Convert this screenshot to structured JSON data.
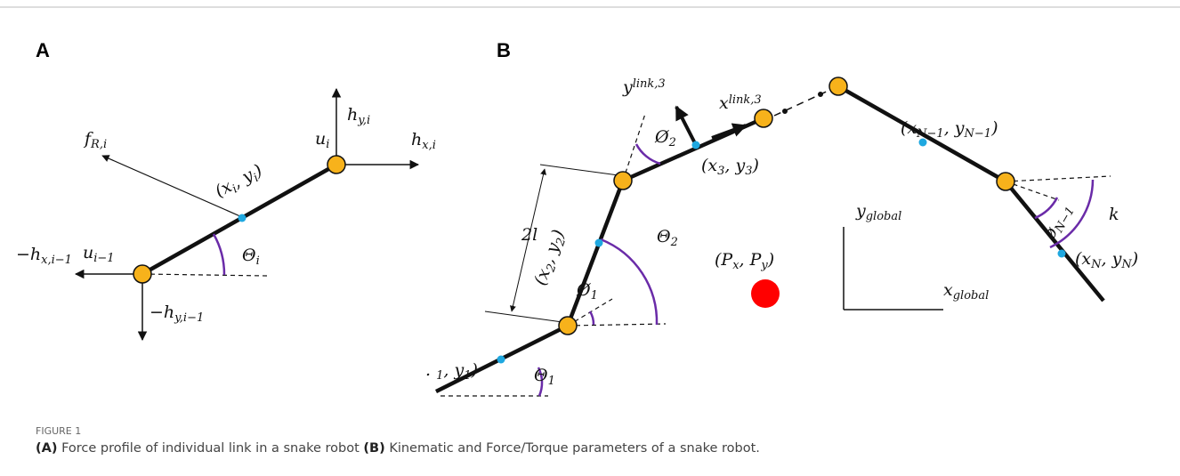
{
  "figure": {
    "number": "FIGURE 1",
    "caption": [
      {
        "bold": "(A)"
      },
      " Force profile of individual link in a snake robot ",
      {
        "bold": "(B)"
      },
      " Kinematic and Force/Torque parameters of a snake robot."
    ],
    "panel_a": {
      "label": "A",
      "labels": [
        [
          "f",
          {
            "sub": "R,i"
          }
        ],
        [
          "h",
          {
            "sub": "y,i"
          }
        ],
        [
          "h",
          {
            "sub": "x,i"
          }
        ],
        [
          "u",
          {
            "sub": "i"
          }
        ],
        [
          "(x",
          {
            "sub": "i"
          },
          ", y",
          {
            "sub": "i"
          },
          ")"
        ],
        [
          "−h",
          {
            "sub": "x,i−1"
          }
        ],
        [
          "u",
          {
            "sub": "i−1"
          }
        ],
        [
          "Θ",
          {
            "sub": "i"
          }
        ],
        [
          "−h",
          {
            "sub": "y,i−1"
          }
        ]
      ]
    },
    "panel_b": {
      "label": "B",
      "labels": [
        [
          "y",
          {
            "sup": "link,3"
          }
        ],
        [
          "x",
          {
            "sup": "link,3"
          }
        ],
        [
          "Ø",
          {
            "sub": "2"
          }
        ],
        [
          "(x",
          {
            "sub": "3"
          },
          ", y",
          {
            "sub": "3"
          },
          ")"
        ],
        [
          "(x",
          {
            "sub": "N−1"
          },
          ", y",
          {
            "sub": "N−1"
          },
          ")"
        ],
        [
          "2l"
        ],
        [
          "(x",
          {
            "sub": "2"
          },
          ", y",
          {
            "sub": "2"
          },
          ")"
        ],
        [
          "Θ",
          {
            "sub": "2"
          }
        ],
        [
          "Ø",
          {
            "sub": "1"
          }
        ],
        [
          "(P",
          {
            "sub": "x"
          },
          ", P",
          {
            "sub": "y"
          },
          ")"
        ],
        [
          "y",
          {
            "sub": "global"
          }
        ],
        [
          "x",
          {
            "sub": "global"
          }
        ],
        [
          "ø",
          {
            "sub": "N−1"
          }
        ],
        [
          "k"
        ],
        [
          "(x",
          {
            "sub": "N"
          },
          ", y",
          {
            "sub": "N"
          },
          ")"
        ],
        [
          ". ",
          {
            "sub": "1"
          },
          ", y",
          {
            "sub": "1"
          },
          ")"
        ],
        [
          "Θ",
          {
            "sub": "1"
          }
        ]
      ]
    }
  }
}
